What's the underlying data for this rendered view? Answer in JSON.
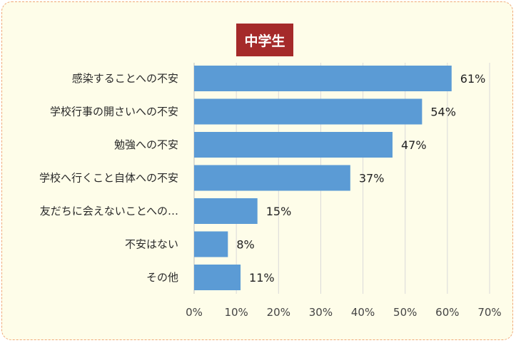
{
  "chart_data": {
    "type": "bar",
    "orientation": "horizontal",
    "title": "中学生",
    "categories": [
      "感染することへの不安",
      "学校行事の開さいへの不安",
      "勉強への不安",
      "学校へ行くこと自体への不安",
      "友だちに会えないことへの…",
      "不安はない",
      "その他"
    ],
    "values": [
      61,
      54,
      47,
      37,
      15,
      8,
      11
    ],
    "value_labels": [
      "61%",
      "54%",
      "47%",
      "37%",
      "15%",
      "8%",
      "11%"
    ],
    "xlim": [
      0,
      70
    ],
    "xticks": [
      0,
      10,
      20,
      30,
      40,
      50,
      60,
      70
    ],
    "xtick_labels": [
      "0%",
      "10%",
      "20%",
      "30%",
      "40%",
      "50%",
      "60%",
      "70%"
    ],
    "grid": true,
    "colors": {
      "bar": "#5b9bd5",
      "title_bg": "#a52a2a",
      "background": "#fefde9",
      "border": "#f0a878"
    }
  }
}
